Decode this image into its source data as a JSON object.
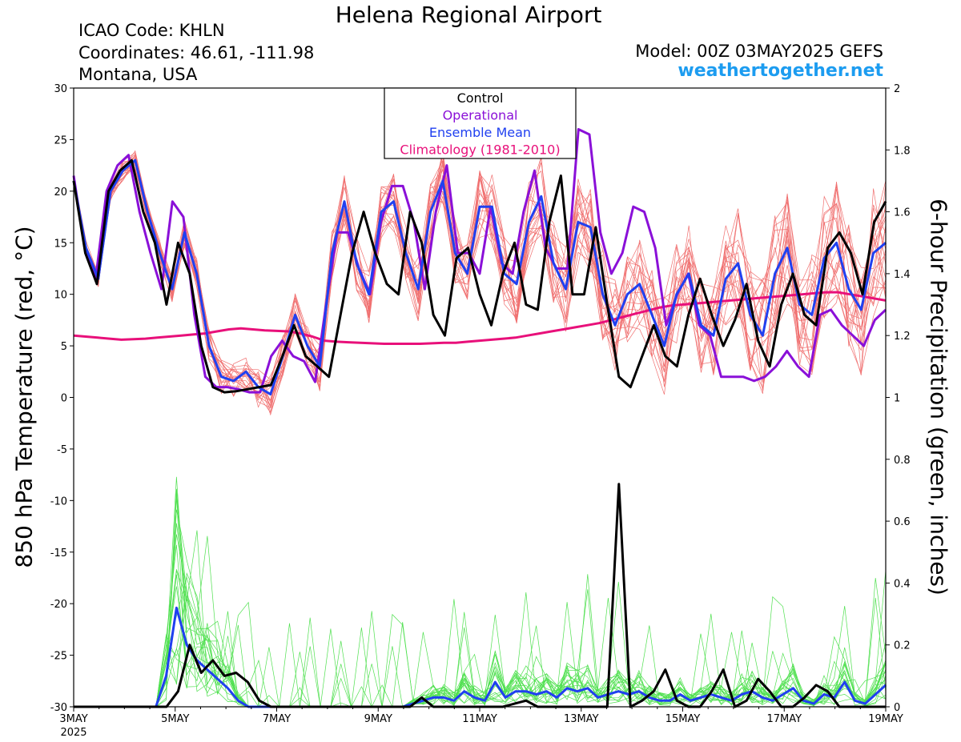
{
  "header": {
    "title": "Helena Regional Airport",
    "icao": "ICAO Code: KHLN",
    "coords": "Coordinates: 46.61, -111.98",
    "region": "Montana, USA",
    "model": "Model: 00Z 03MAY2025 GEFS",
    "site": "weathertogether.net"
  },
  "chart_data": {
    "type": "line",
    "x_unit": "days since 3MAY 00Z (6-hourly steps)",
    "xlim": [
      0,
      16
    ],
    "x_ticks": [
      {
        "x": 0,
        "label": "3MAY",
        "sub": "2025"
      },
      {
        "x": 2,
        "label": "5MAY"
      },
      {
        "x": 4,
        "label": "7MAY"
      },
      {
        "x": 6,
        "label": "9MAY"
      },
      {
        "x": 8,
        "label": "11MAY"
      },
      {
        "x": 10,
        "label": "13MAY"
      },
      {
        "x": 12,
        "label": "15MAY"
      },
      {
        "x": 14,
        "label": "17MAY"
      },
      {
        "x": 16,
        "label": "19MAY"
      }
    ],
    "y_left": {
      "label": "850 hPa Temperature (red, °C)",
      "lim": [
        -30,
        30
      ],
      "ticks": [
        "30",
        "25",
        "20",
        "15",
        "10",
        "5",
        "0",
        "-5",
        "-10",
        "-15",
        "-20",
        "-25",
        "-30"
      ]
    },
    "y_right": {
      "label": "6-hour Precipitation (green, inches)",
      "lim": [
        0,
        2
      ],
      "ticks": [
        "2",
        "1.8",
        "1.6",
        "1.4",
        "1.2",
        "1",
        "0.8",
        "0.6",
        "0.4",
        "0.2",
        "0"
      ]
    },
    "legend": {
      "position": "top-center",
      "entries": [
        {
          "name": "Control",
          "color": "#000000"
        },
        {
          "name": "Operational",
          "color": "#8a10d8"
        },
        {
          "name": "Ensemble Mean",
          "color": "#2040f0"
        },
        {
          "name": "Climatology (1981-2010)",
          "color": "#e8107a"
        }
      ]
    },
    "colors": {
      "members_temp": "#f07070",
      "members_precip": "#50e050"
    },
    "series": [
      {
        "name": "Control",
        "axis": "left",
        "color": "#000000",
        "values": [
          21,
          14,
          11,
          20,
          22,
          23,
          18,
          15,
          9,
          15,
          12,
          5,
          1,
          0.5,
          0.6,
          0.8,
          1,
          1.2,
          4,
          7,
          4,
          3,
          2,
          8,
          14,
          18,
          14,
          11,
          10,
          18,
          15,
          8,
          6,
          13.5,
          14.5,
          10,
          7,
          12,
          15,
          9,
          8.5,
          17,
          21.5,
          10,
          10,
          16.5,
          9,
          2,
          1,
          4,
          7,
          4,
          3,
          8,
          11.5,
          8,
          5,
          7.5,
          11,
          5.5,
          3,
          9,
          12,
          8,
          7,
          14.5,
          16,
          14,
          10,
          17,
          19
        ]
      },
      {
        "name": "Operational",
        "axis": "left",
        "color": "#8a10d8",
        "values": [
          21.5,
          14.5,
          11.5,
          20,
          22.5,
          23.5,
          18,
          14,
          10.5,
          19,
          17.5,
          8,
          2,
          1,
          1,
          0.8,
          0.5,
          0.5,
          4,
          5.5,
          4,
          3.5,
          1.5,
          9,
          16,
          16,
          12.5,
          10,
          17,
          20.5,
          20.5,
          17,
          10.5,
          18,
          22.5,
          14,
          14,
          12,
          18.5,
          13,
          12,
          18,
          22,
          14.5,
          12.5,
          12.5,
          26,
          25.5,
          16,
          12,
          14,
          18.5,
          18,
          14.5,
          7,
          10,
          12,
          7,
          6,
          2,
          2,
          2,
          1.6,
          2,
          3,
          4.5,
          3,
          2,
          8,
          8.5,
          7,
          6,
          5,
          7.5,
          8.5
        ]
      },
      {
        "name": "Ensemble Mean",
        "axis": "left",
        "color": "#2040f0",
        "values": [
          21,
          14.5,
          11.5,
          20,
          22,
          23,
          18,
          14,
          10.5,
          16,
          12,
          5,
          2,
          1.6,
          2.5,
          1,
          0.3,
          4,
          8,
          5,
          3,
          14,
          19,
          13,
          10,
          18,
          19,
          14,
          10.5,
          18,
          21,
          14,
          12,
          18.5,
          18.5,
          12,
          11,
          17,
          19.5,
          13,
          10.5,
          17,
          16.5,
          10,
          7,
          10,
          11,
          8,
          5,
          10,
          12,
          7,
          6,
          11.5,
          13,
          8,
          6,
          12,
          14.5,
          9,
          8,
          13.5,
          15,
          10.5,
          8.5,
          14,
          15
        ]
      },
      {
        "name": "Climatology (1981-2010)",
        "axis": "left",
        "color": "#e8107a",
        "values": [
          6,
          5.9,
          5.8,
          5.7,
          5.6,
          5.65,
          5.7,
          5.8,
          5.9,
          6,
          6.1,
          6.2,
          6.4,
          6.6,
          6.7,
          6.6,
          6.5,
          6.45,
          6.4,
          6.2,
          5.9,
          5.5,
          5.4,
          5.35,
          5.3,
          5.25,
          5.2,
          5.2,
          5.2,
          5.2,
          5.25,
          5.3,
          5.3,
          5.4,
          5.5,
          5.6,
          5.7,
          5.8,
          6,
          6.2,
          6.4,
          6.6,
          6.8,
          7,
          7.2,
          7.5,
          7.8,
          8.1,
          8.4,
          8.7,
          8.9,
          9,
          9.1,
          9.2,
          9.3,
          9.4,
          9.5,
          9.6,
          9.7,
          9.8,
          9.9,
          10,
          10.1,
          10.2,
          10.2,
          10,
          9.8,
          9.6,
          9.4
        ]
      },
      {
        "name": "Control precip",
        "axis": "right",
        "color": "#000000",
        "values": [
          0,
          0,
          0,
          0,
          0,
          0,
          0,
          0,
          0,
          0.05,
          0.2,
          0.11,
          0.15,
          0.1,
          0.11,
          0.08,
          0.02,
          0,
          0,
          0,
          0,
          0,
          0,
          0,
          0,
          0,
          0,
          0,
          0,
          0,
          0.03,
          0,
          0,
          0,
          0,
          0,
          0,
          0,
          0.01,
          0.02,
          0,
          0,
          0,
          0,
          0,
          0,
          0,
          0.72,
          0,
          0.02,
          0.05,
          0.12,
          0.02,
          0,
          0,
          0.05,
          0.12,
          0,
          0.02,
          0.09,
          0.05,
          0,
          0,
          0.03,
          0.07,
          0.05,
          0,
          0,
          0,
          0,
          0
        ]
      },
      {
        "name": "Mean precip",
        "axis": "right",
        "color": "#2040f0",
        "values": [
          0,
          0,
          0,
          0,
          0,
          0,
          0,
          0,
          0,
          0.1,
          0.32,
          0.2,
          0.15,
          0.12,
          0.09,
          0.06,
          0.02,
          0,
          0,
          0,
          0,
          0,
          0,
          0,
          0,
          0,
          0,
          0,
          0,
          0,
          0,
          0,
          0,
          0.01,
          0.02,
          0.03,
          0.03,
          0.02,
          0.05,
          0.03,
          0.02,
          0.08,
          0.03,
          0.05,
          0.05,
          0.04,
          0.05,
          0.03,
          0.06,
          0.05,
          0.06,
          0.03,
          0.04,
          0.05,
          0.04,
          0.05,
          0.03,
          0.02,
          0.02,
          0.04,
          0.02,
          0.03,
          0.04,
          0.03,
          0.02,
          0.04,
          0.05,
          0.03,
          0.02,
          0.04,
          0.06,
          0.02,
          0.01,
          0.04,
          0.03,
          0.08,
          0.02,
          0.01,
          0.04,
          0.07
        ]
      }
    ]
  }
}
